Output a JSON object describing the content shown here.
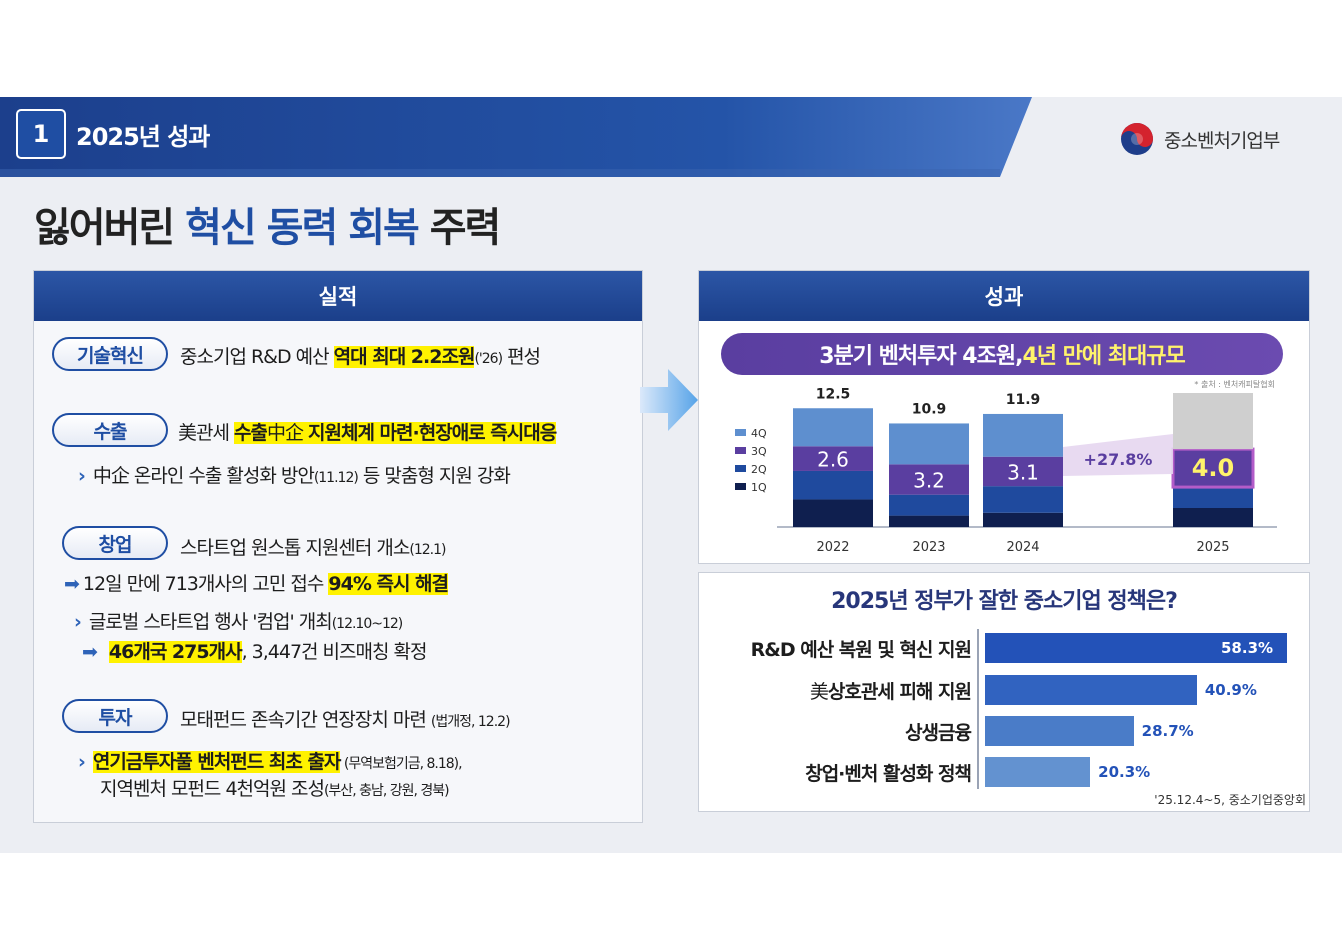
{
  "header": {
    "section_number": "1",
    "section_title": "2025년 성과",
    "ministry_name": "중소벤처기업부",
    "logo_icon": "taegeuk-logo-icon"
  },
  "title": {
    "part1": "잃어버린 ",
    "highlight": "혁신 동력 회복",
    "part2": " 주력"
  },
  "left_panel": {
    "heading": "실적",
    "sections": {
      "tech": {
        "tag": "기술혁신",
        "text_pre": "중소기업 R&D 예산 ",
        "text_hl": "역대 최대 2.2조원",
        "text_small": "('26)",
        "text_post": " 편성"
      },
      "export": {
        "tag": "수출",
        "main_pre": "美관세 ",
        "main_hl1": "수출",
        "main_mid": "中企 ",
        "main_hl2": "지원체계 마련·현장애로 즉시대응",
        "sub_pre": "中企 온라인 수출 활성화 방안",
        "sub_small": "(11.12)",
        "sub_post": " 등 맞춤형 지원 강화"
      },
      "startup": {
        "tag": "창업",
        "main": "스타트업 원스톱 지원센터 개소",
        "main_small": "(12.1)",
        "line2_pre": "12일 만에 713개사의 고민 접수 ",
        "line2_hl": "94% 즉시 해결",
        "line3_pre": "글로벌 스타트업 행사 '컴업' 개최",
        "line3_small": "(12.10~12)",
        "line4_hl": "46개국 275개사",
        "line4_post": ", 3,447건 비즈매칭 확정"
      },
      "invest": {
        "tag": "투자",
        "main": "모태펀드 존속기간 연장장치 마련 ",
        "main_small": "(법개정, 12.2)",
        "line2_hl": "연기금투자풀 벤처펀드 최초 출자",
        "line2_small": " (무역보험기금, 8.18),",
        "line3_pre": "지역벤처 모펀드 4천억원 조성",
        "line3_small": "(부산, 충남, 강원, 경북)"
      }
    }
  },
  "right_panel": {
    "heading": "성과",
    "banner_white": "3분기 벤처투자 4조원, ",
    "banner_yellow": "4년 만에 최대규모",
    "source": "* 출처 : 벤처캐피탈협회"
  },
  "chart_data": [
    {
      "type": "bar",
      "stacked": true,
      "categories": [
        "2022",
        "2023",
        "2024",
        "2025"
      ],
      "series": [
        {
          "name": "1Q",
          "values": [
            2.9,
            1.2,
            1.5,
            2.0
          ],
          "color": "#0f1f4f"
        },
        {
          "name": "2Q",
          "values": [
            3.0,
            2.2,
            2.8,
            2.2
          ],
          "color": "#1f4a9e"
        },
        {
          "name": "3Q",
          "values": [
            2.6,
            3.2,
            3.1,
            4.0
          ],
          "color": "#5a3ea0"
        },
        {
          "name": "4Q",
          "values": [
            4.0,
            4.3,
            4.5,
            null
          ],
          "color": "#5e8fcf"
        }
      ],
      "totals": [
        "12.5",
        "10.9",
        "11.9",
        ""
      ],
      "labeled_values": [
        "2.6",
        "3.2",
        "3.1",
        "4.0"
      ],
      "change_label": "+27.8%",
      "legend": [
        "4Q",
        "3Q",
        "2Q",
        "1Q"
      ],
      "legend_position": "left",
      "ylim": [
        0,
        15
      ]
    },
    {
      "type": "bar",
      "orientation": "horizontal",
      "title": "2025년 정부가 잘한 중소기업 정책은?",
      "categories": [
        "R&D 예산 복원 및 혁신 지원",
        "美상호관세 피해 지원",
        "상생금융",
        "창업·벤처 활성화 정책"
      ],
      "values": [
        58.3,
        40.9,
        28.7,
        20.3
      ],
      "value_labels": [
        "58.3%",
        "40.9%",
        "28.7%",
        "20.3%"
      ],
      "colors": [
        "#2352b8",
        "#3163c0",
        "#4a7cc8",
        "#6392d0"
      ],
      "xlim": [
        0,
        60
      ],
      "note": "'25.12.4~5, 중소기업중앙회"
    }
  ]
}
